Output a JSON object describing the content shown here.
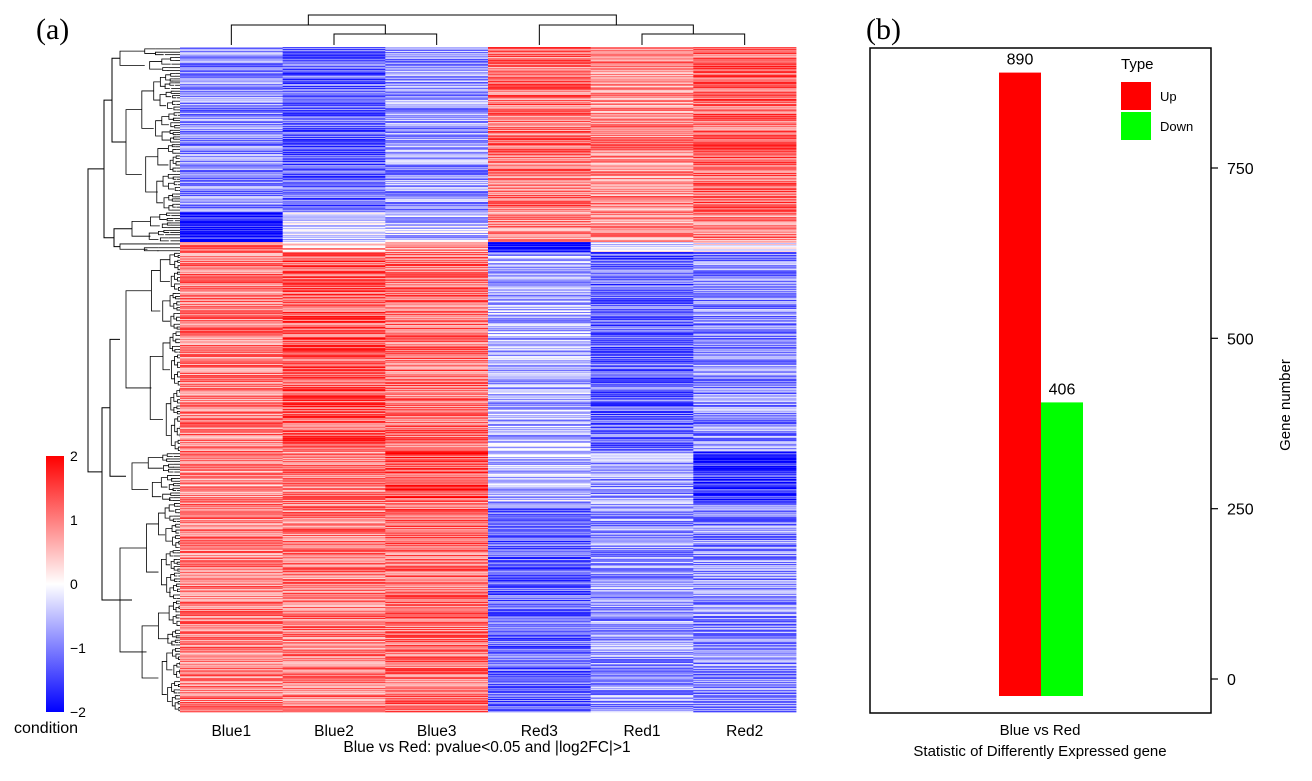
{
  "panels": {
    "a": "(a)",
    "b": "(b)"
  },
  "chart_data": [
    {
      "type": "heatmap",
      "columns": [
        "Blue1",
        "Blue2",
        "Blue3",
        "Red3",
        "Red1",
        "Red2"
      ],
      "xlabel": "Blue vs Red: pvalue<0.05 and |log2FC|>1",
      "row_dendrogram": true,
      "column_dendrogram": true,
      "colorbar": {
        "label": "condition",
        "range": [
          -2,
          2
        ],
        "ticks": [
          "2",
          "1",
          "0",
          "−1",
          "−2"
        ],
        "colors": {
          "low": "#0000ff",
          "mid": "#ffffff",
          "high": "#ff0000"
        }
      },
      "row_blocks": [
        {
          "rows": 165,
          "values": [
            -0.9,
            -1.2,
            -0.8,
            1.1,
            0.9,
            1.2
          ]
        },
        {
          "rows": 30,
          "values": [
            -1.8,
            -0.4,
            -0.5,
            0.9,
            0.8,
            1.0
          ]
        },
        {
          "rows": 10,
          "values": [
            1.1,
            0.6,
            0.7,
            -2.0,
            -0.2,
            0.0
          ]
        },
        {
          "rows": 200,
          "values": [
            1.0,
            1.3,
            1.1,
            -0.6,
            -1.2,
            -0.9
          ]
        },
        {
          "rows": 50,
          "values": [
            0.8,
            1.0,
            1.4,
            -0.5,
            -0.8,
            -1.6
          ]
        },
        {
          "rows": 210,
          "values": [
            1.0,
            1.0,
            1.1,
            -1.2,
            -0.8,
            -0.9
          ]
        }
      ]
    },
    {
      "type": "bar",
      "categories": [
        "Blue vs Red"
      ],
      "series": [
        {
          "name": "Up",
          "values": [
            890
          ],
          "color": "#ff0000"
        },
        {
          "name": "Down",
          "values": [
            406
          ],
          "color": "#00ff00"
        }
      ],
      "data_labels": [
        "890",
        "406"
      ],
      "xlabel": "Blue vs Red",
      "title": "Statistic of Differently Expressed gene",
      "ylabel": "Gene number",
      "yticks": [
        0,
        250,
        500,
        750
      ],
      "ylim": [
        -45,
        935
      ],
      "legend": {
        "title": "Type",
        "position": "top-right"
      }
    }
  ]
}
